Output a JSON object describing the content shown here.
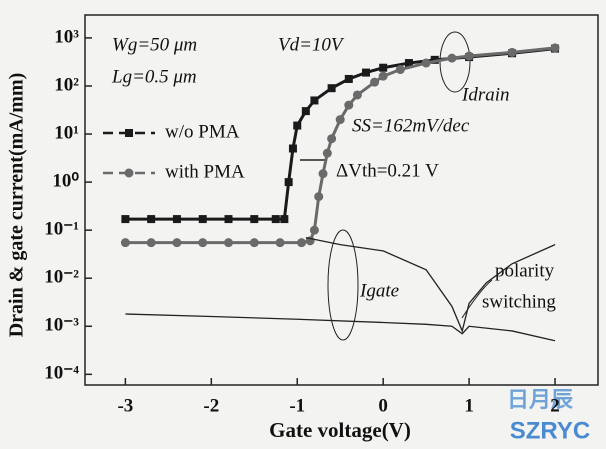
{
  "chart_data": {
    "type": "line",
    "x_label": "Gate voltage(V)",
    "y_label": "Drain & gate current(mA/mm)",
    "log_y": true,
    "xlim": [
      -3.47,
      2.5
    ],
    "ylim": [
      6e-05,
      3000
    ],
    "xticks": [
      -3,
      -2,
      -1,
      0,
      1,
      2
    ],
    "yticks": [
      {
        "value": 0.0001,
        "label": "10⁻⁴"
      },
      {
        "value": 0.001,
        "label": "10⁻³"
      },
      {
        "value": 0.01,
        "label": "10⁻²"
      },
      {
        "value": 0.1,
        "label": "10⁻¹"
      },
      {
        "value": 1,
        "label": "10⁰"
      },
      {
        "value": 10,
        "label": "10¹"
      },
      {
        "value": 100,
        "label": "10²"
      },
      {
        "value": 1000,
        "label": "10³"
      }
    ],
    "series": [
      {
        "name": "w/o PMA",
        "color": "#1a1a1a",
        "marker": "square",
        "x": [
          -3,
          -2.7,
          -2.4,
          -2.1,
          -1.8,
          -1.5,
          -1.25,
          -1.15,
          -1.1,
          -1.05,
          -1.0,
          -0.9,
          -0.8,
          -0.6,
          -0.4,
          -0.2,
          0,
          0.3,
          0.6,
          1,
          1.5,
          2
        ],
        "values": [
          0.17,
          0.17,
          0.17,
          0.17,
          0.17,
          0.17,
          0.17,
          0.17,
          1,
          5,
          15,
          30,
          50,
          90,
          140,
          190,
          240,
          300,
          350,
          400,
          480,
          600
        ]
      },
      {
        "name": "with PMA",
        "color": "#6a6a6a",
        "marker": "circle",
        "x": [
          -3,
          -2.7,
          -2.4,
          -2.1,
          -1.8,
          -1.5,
          -1.2,
          -0.95,
          -0.85,
          -0.8,
          -0.75,
          -0.7,
          -0.65,
          -0.6,
          -0.5,
          -0.4,
          -0.3,
          -0.1,
          0,
          0.2,
          0.5,
          0.8,
          1,
          1.5,
          2
        ],
        "values": [
          0.055,
          0.055,
          0.055,
          0.055,
          0.055,
          0.055,
          0.055,
          0.055,
          0.06,
          0.1,
          0.5,
          1.5,
          4,
          8,
          20,
          40,
          65,
          120,
          160,
          220,
          300,
          380,
          420,
          500,
          620
        ]
      },
      {
        "color": "#222222",
        "marker": "none",
        "x": [
          -0.9,
          -0.5,
          0,
          0.5,
          0.8,
          0.92,
          1.0,
          1.2,
          1.5,
          2
        ],
        "values": [
          0.07,
          0.05,
          0.037,
          0.015,
          0.0026,
          0.0008,
          0.003,
          0.008,
          0.02,
          0.05
        ]
      },
      {
        "color": "#222222",
        "marker": "none",
        "x": [
          -3,
          -2,
          -1,
          0,
          0.5,
          0.8,
          0.92,
          1.0,
          1.5,
          2
        ],
        "values": [
          0.0018,
          0.0016,
          0.0014,
          0.0012,
          0.0011,
          0.001,
          0.0007,
          0.001,
          0.0008,
          0.0005
        ]
      }
    ],
    "annotations": [
      "Wg=50 μm",
      "Lg=0.5 μm",
      "Vd=10V",
      "Idrain",
      "SS=162mV/dec",
      "ΔVth=0.21 V",
      "Igate",
      "polarity",
      "switching"
    ],
    "watermark": [
      "日月辰",
      "SZRYC"
    ]
  }
}
